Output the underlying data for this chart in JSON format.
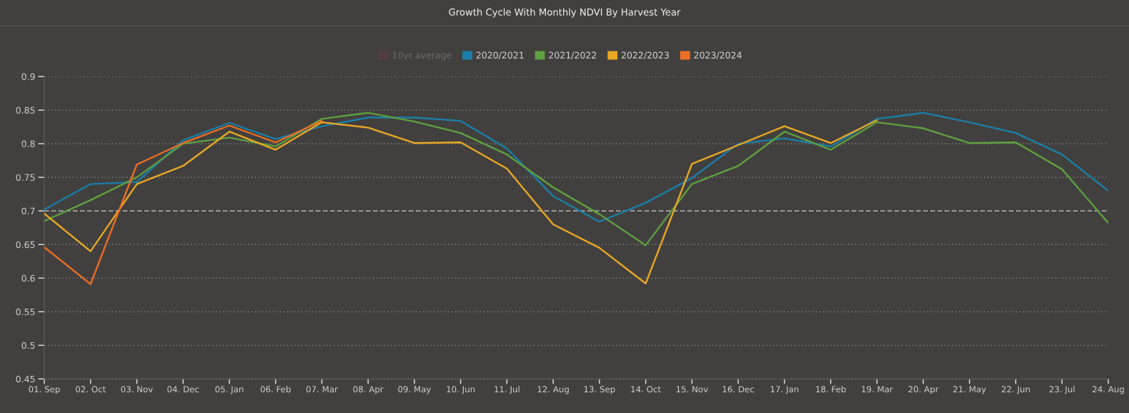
{
  "chart_data": {
    "type": "line",
    "title": "Growth Cycle With Monthly NDVI By Harvest Year",
    "categories": [
      "01. Sep",
      "02. Oct",
      "03. Nov",
      "04. Dec",
      "05. Jan",
      "06. Feb",
      "07. Mar",
      "08. Apr",
      "09. May",
      "10. Jun",
      "11. Jul",
      "12. Aug",
      "13. Sep",
      "14. Oct",
      "15. Nov",
      "16. Dec",
      "17. Jan",
      "18. Feb",
      "19. Mar",
      "20. Apr",
      "21. May",
      "22. Jun",
      "23. Jul",
      "24. Aug"
    ],
    "series": [
      {
        "name": "10yr average",
        "color": "#6b3a44",
        "values": [
          null,
          null,
          null,
          null,
          null,
          null,
          null,
          null,
          null,
          null,
          null,
          null,
          null,
          null,
          null,
          null,
          null,
          null,
          null,
          null,
          null,
          null,
          null,
          null
        ]
      },
      {
        "name": "2020/2021",
        "color": "#1a7fa9",
        "values": [
          0.702,
          0.74,
          0.743,
          0.805,
          0.831,
          0.807,
          0.826,
          0.839,
          0.839,
          0.834,
          0.793,
          0.722,
          0.684,
          0.712,
          0.749,
          0.8,
          0.808,
          0.796,
          0.837,
          0.846,
          0.832,
          0.816,
          0.784,
          0.73
        ]
      },
      {
        "name": "2021/2022",
        "color": "#5ea03f",
        "values": [
          0.685,
          0.716,
          0.75,
          0.8,
          0.809,
          0.796,
          0.837,
          0.846,
          0.833,
          0.816,
          0.784,
          0.735,
          0.695,
          0.649,
          0.74,
          0.767,
          0.818,
          0.791,
          0.832,
          0.823,
          0.801,
          0.802,
          0.762,
          0.682
        ]
      },
      {
        "name": "2022/2023",
        "color": "#e9a824",
        "values": [
          0.696,
          0.64,
          0.74,
          0.767,
          0.818,
          0.791,
          0.832,
          0.824,
          0.801,
          0.802,
          0.763,
          0.68,
          0.645,
          0.592,
          0.77,
          0.798,
          0.826,
          0.801,
          0.835,
          null,
          null,
          null,
          null,
          null
        ]
      },
      {
        "name": "2023/2024",
        "color": "#ee6e24",
        "values": [
          0.646,
          0.591,
          0.769,
          0.801,
          0.827,
          0.802,
          0.834,
          null,
          null,
          null,
          null,
          null,
          null,
          null,
          null,
          null,
          null,
          null,
          null,
          null,
          null,
          null,
          null,
          null
        ]
      }
    ],
    "ylim": [
      0.45,
      0.9
    ],
    "yticks": [
      0.45,
      0.5,
      0.55,
      0.6,
      0.65,
      0.7,
      0.75,
      0.8,
      0.85,
      0.9
    ],
    "grid": "y",
    "legend": "top",
    "line_style": "solid",
    "ref_lines": [
      {
        "axis": "y",
        "value": 0.7,
        "color": "#c8c8c8",
        "line_style": "dashed"
      }
    ]
  }
}
